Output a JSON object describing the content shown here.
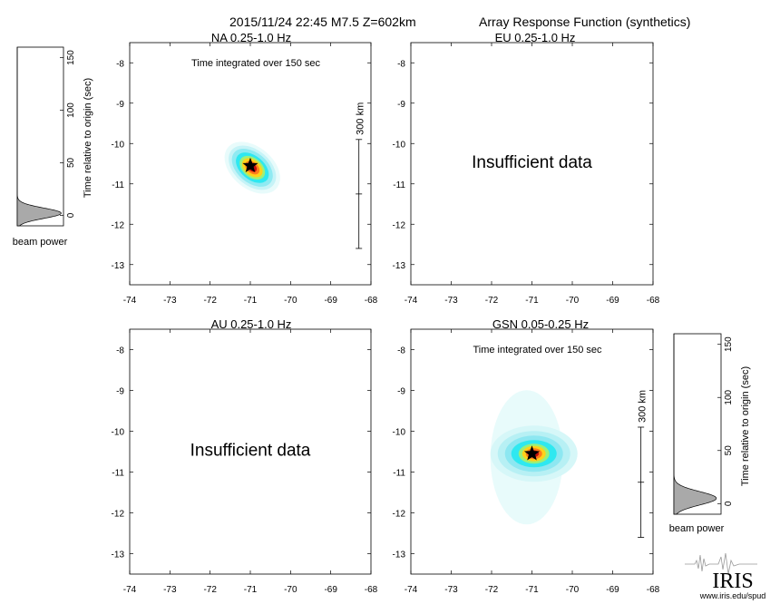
{
  "header": {
    "event": "2015/11/24 22:45  M7.5  Z=602km",
    "product": "Array Response Function (synthetics)"
  },
  "chart_data": [
    {
      "type": "heatmap",
      "id": "na",
      "title": "NA  0.25-1.0 Hz",
      "note": "Time integrated over 150 sec",
      "x_ticks": [
        -74,
        -73,
        -72,
        -71,
        -70,
        -69,
        -68
      ],
      "y_ticks": [
        -8,
        -9,
        -10,
        -11,
        -12,
        -13
      ],
      "xlim": [
        -74,
        -68
      ],
      "ylim": [
        -13.5,
        -7.5
      ],
      "epicenter": {
        "lon": -71.0,
        "lat": -10.55
      },
      "beam": {
        "lon": -70.95,
        "lat": -10.6,
        "shape": "tilted-ellipse"
      },
      "scale_bar": "300 km"
    },
    {
      "type": "heatmap",
      "id": "eu",
      "title": "EU  0.25-1.0 Hz",
      "message": "Insufficient data",
      "x_ticks": [
        -74,
        -73,
        -72,
        -71,
        -70,
        -69,
        -68
      ],
      "y_ticks": [
        -8,
        -9,
        -10,
        -11,
        -12,
        -13
      ],
      "xlim": [
        -74,
        -68
      ],
      "ylim": [
        -13.5,
        -7.5
      ]
    },
    {
      "type": "heatmap",
      "id": "au",
      "title": "AU  0.25-1.0 Hz",
      "message": "Insufficient data",
      "x_ticks": [
        -74,
        -73,
        -72,
        -71,
        -70,
        -69,
        -68
      ],
      "y_ticks": [
        -8,
        -9,
        -10,
        -11,
        -12,
        -13
      ],
      "xlim": [
        -74,
        -68
      ],
      "ylim": [
        -13.5,
        -7.5
      ]
    },
    {
      "type": "heatmap",
      "id": "gsn",
      "title": "GSN  0.05-0.25 Hz",
      "note": "Time integrated over 150 sec",
      "x_ticks": [
        -74,
        -73,
        -72,
        -71,
        -70,
        -69,
        -68
      ],
      "y_ticks": [
        -8,
        -9,
        -10,
        -11,
        -12,
        -13
      ],
      "xlim": [
        -74,
        -68
      ],
      "ylim": [
        -13.5,
        -7.5
      ],
      "epicenter": {
        "lon": -71.0,
        "lat": -10.55
      },
      "beam": {
        "lon": -70.95,
        "lat": -10.55,
        "shape": "wide-ellipse"
      },
      "scale_bar": "300 km"
    }
  ],
  "beam_power_panels": [
    {
      "id": "na",
      "xlabel": "beam power",
      "ylabel": "Time relative to origin (sec)",
      "y_ticks": [
        0,
        50,
        100,
        150
      ],
      "ylim": [
        -10,
        160
      ],
      "peak_time": 2,
      "peak_power": 0.95,
      "peak_width": 7
    },
    {
      "id": "gsn",
      "xlabel": "beam power",
      "ylabel": "Time relative to origin (sec)",
      "y_ticks": [
        0,
        50,
        100,
        150
      ],
      "ylim": [
        -10,
        160
      ],
      "peak_time": 5,
      "peak_power": 0.9,
      "peak_width": 9
    }
  ],
  "logo": {
    "name": "IRIS",
    "url": "www.iris.edu/spud"
  },
  "colors": {
    "beam_outer": "#e8fbfb",
    "beam_cyan": "#2fe8f0",
    "beam_yellow": "#ffd21a",
    "beam_orange": "#ff7b1c",
    "beam_core": "#c40f0f",
    "star": "#000000",
    "trace_fill": "#a9a9a9"
  }
}
